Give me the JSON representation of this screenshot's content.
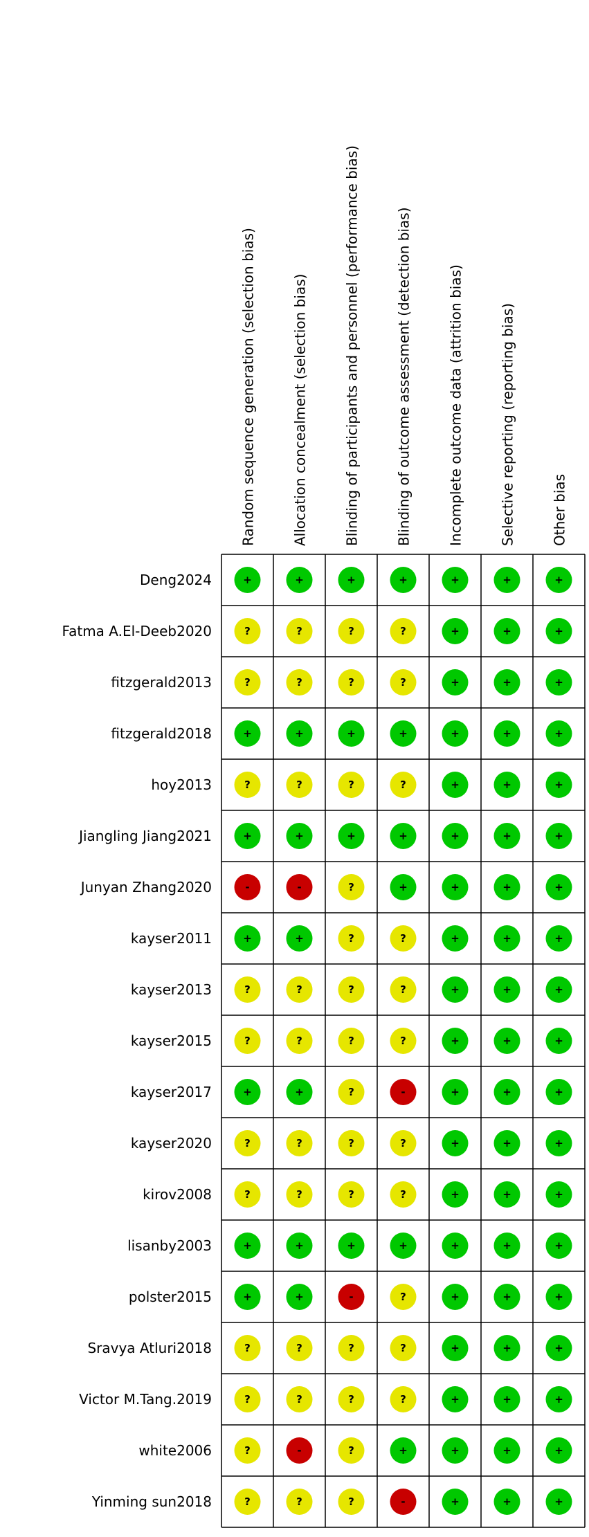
{
  "domains": [
    "Random sequence generation (selection bias)",
    "Allocation concealment (selection bias)",
    "Blinding of participants and personnel (performance bias)",
    "Blinding of outcome assessment (detection bias)",
    "Incomplete outcome data (attrition bias)",
    "Selective reporting (reporting bias)",
    "Other bias"
  ],
  "colors": {
    "+": "#00c800",
    "?": "#e6e600",
    "-": "#c80000"
  },
  "studies": [
    {
      "name": "Deng2024",
      "judgments": [
        "+",
        "+",
        "+",
        "+",
        "+",
        "+",
        "+"
      ]
    },
    {
      "name": "Fatma A.El-Deeb2020",
      "judgments": [
        "?",
        "?",
        "?",
        "?",
        "+",
        "+",
        "+"
      ]
    },
    {
      "name": "fitzgerald2013",
      "judgments": [
        "?",
        "?",
        "?",
        "?",
        "+",
        "+",
        "+"
      ]
    },
    {
      "name": "fitzgerald2018",
      "judgments": [
        "+",
        "+",
        "+",
        "+",
        "+",
        "+",
        "+"
      ]
    },
    {
      "name": "hoy2013",
      "judgments": [
        "?",
        "?",
        "?",
        "?",
        "+",
        "+",
        "+"
      ]
    },
    {
      "name": "Jiangling Jiang2021",
      "judgments": [
        "+",
        "+",
        "+",
        "+",
        "+",
        "+",
        "+"
      ]
    },
    {
      "name": "Junyan Zhang2020",
      "judgments": [
        "-",
        "-",
        "?",
        "+",
        "+",
        "+",
        "+"
      ]
    },
    {
      "name": "kayser2011",
      "judgments": [
        "+",
        "+",
        "?",
        "?",
        "+",
        "+",
        "+"
      ]
    },
    {
      "name": "kayser2013",
      "judgments": [
        "?",
        "?",
        "?",
        "?",
        "+",
        "+",
        "+"
      ]
    },
    {
      "name": "kayser2015",
      "judgments": [
        "?",
        "?",
        "?",
        "?",
        "+",
        "+",
        "+"
      ]
    },
    {
      "name": "kayser2017",
      "judgments": [
        "+",
        "+",
        "?",
        "-",
        "+",
        "+",
        "+"
      ]
    },
    {
      "name": "kayser2020",
      "judgments": [
        "?",
        "?",
        "?",
        "?",
        "+",
        "+",
        "+"
      ]
    },
    {
      "name": "kirov2008",
      "judgments": [
        "?",
        "?",
        "?",
        "?",
        "+",
        "+",
        "+"
      ]
    },
    {
      "name": "lisanby2003",
      "judgments": [
        "+",
        "+",
        "+",
        "+",
        "+",
        "+",
        "+"
      ]
    },
    {
      "name": "polster2015",
      "judgments": [
        "+",
        "+",
        "-",
        "?",
        "+",
        "+",
        "+"
      ]
    },
    {
      "name": "Sravya Atluri2018",
      "judgments": [
        "?",
        "?",
        "?",
        "?",
        "+",
        "+",
        "+"
      ]
    },
    {
      "name": "Victor M.Tang.2019",
      "judgments": [
        "?",
        "?",
        "?",
        "?",
        "+",
        "+",
        "+"
      ]
    },
    {
      "name": "white2006",
      "judgments": [
        "?",
        "-",
        "?",
        "+",
        "+",
        "+",
        "+"
      ]
    },
    {
      "name": "Yinming sun2018",
      "judgments": [
        "?",
        "?",
        "?",
        "-",
        "+",
        "+",
        "+"
      ]
    }
  ]
}
